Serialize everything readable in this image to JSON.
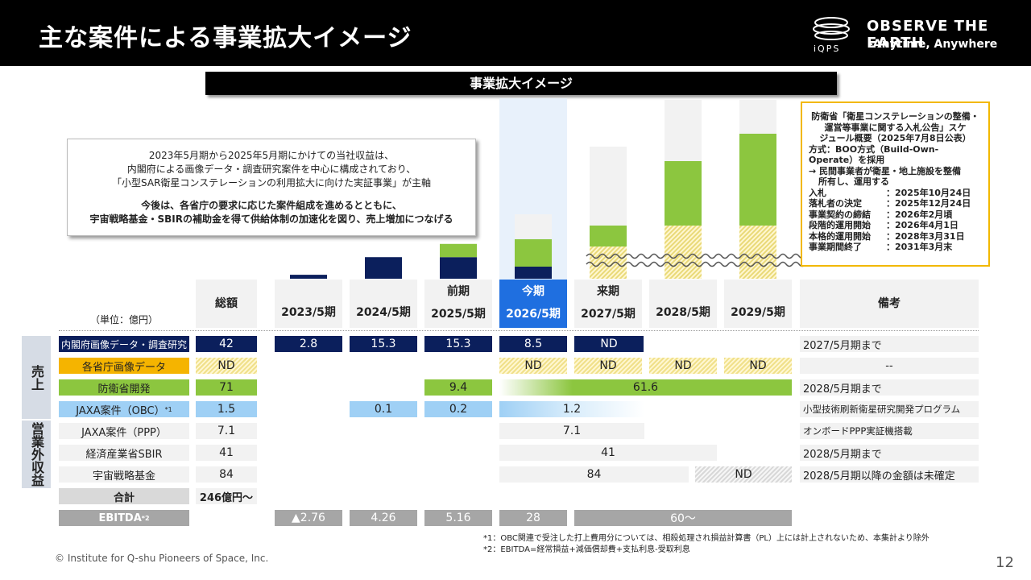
{
  "header": {
    "title": "主な案件による事業拡大イメージ",
    "logo_text": "iQPS",
    "tagline1": "OBSERVE THE EARTH",
    "tagline2": "-Anytime, Anywhere"
  },
  "banner": "事業拡大イメージ",
  "note": {
    "line1": "2023年5月期から2025年5月期にかけての当社収益は、",
    "line2": "内閣府による画像データ・調査研究案件を中心に構成されており、",
    "line3": "「小型SAR衛星コンステレーションの利用拡大に向けた実証事業」が主軸",
    "line4": "今後は、各省庁の要求に応じた案件組成を進めるとともに、",
    "line5": "宇宙戦略基金・SBIRの補助金を得て供給体制の加速化を図り、売上増加につなげる"
  },
  "schedule": {
    "head1": "防衛省「衛星コンステレーションの整備・",
    "head2": "運営等事業に関する入札公告」スケ",
    "head3": "ジュール概要（2025年7月8日公表）",
    "method1": "方式：BOO方式（Build-Own-",
    "method2": "Operate）を採用",
    "arrow1": "→ 民間事業者が衛星・地上施設を整備",
    "arrow2": "所有し、運用する",
    "rows": [
      {
        "k": "入札",
        "v": "：2025年10月24日"
      },
      {
        "k": "落札者の決定",
        "v": "：2025年12月24日"
      },
      {
        "k": "事業契約の締結",
        "v": "：2026年2月頃"
      },
      {
        "k": "段階的運用開始",
        "v": "：2026年4月1日"
      },
      {
        "k": "本格的運用開始",
        "v": "：2028年3月31日"
      },
      {
        "k": "事業期間終了",
        "v": "：2031年3月末"
      }
    ]
  },
  "table": {
    "unit": "（単位：億円）",
    "total_header": "総額",
    "remarks_header": "備考",
    "periods": [
      {
        "top": "",
        "label": "2023/5期"
      },
      {
        "top": "",
        "label": "2024/5期"
      },
      {
        "top": "前期",
        "label": "2025/5期"
      },
      {
        "top": "今期",
        "label": "2026/5期"
      },
      {
        "top": "来期",
        "label": "2027/5期"
      },
      {
        "top": "",
        "label": "2028/5期"
      },
      {
        "top": "",
        "label": "2029/5期"
      }
    ],
    "side_sales": "売上",
    "side_nonop": "営業外収益",
    "rows": [
      {
        "label": "内閣府画像データ・調査研究",
        "total": "42",
        "v1": "2.8",
        "v2": "15.3",
        "v3": "15.3",
        "v4": "8.5",
        "v5": "ND",
        "remark": "2027/5月期まで"
      },
      {
        "label": "各省庁画像データ",
        "total": "ND",
        "v4": "ND",
        "v5": "ND",
        "v6": "ND",
        "v7": "ND",
        "remark": "--"
      },
      {
        "label": "防衛省開発",
        "total": "71",
        "v3": "9.4",
        "span": "61.6",
        "remark": "2028/5月期まで"
      },
      {
        "label": "JAXA案件（OBC）",
        "label_sup": "*1",
        "total": "1.5",
        "v2": "0.1",
        "v3": "0.2",
        "span": "1.2",
        "remark": "小型技術刷新衛星研究開発プログラム"
      },
      {
        "label": "JAXA案件（PPP）",
        "total": "7.1",
        "span": "7.1",
        "remark": "オンボードPPP実証機搭載"
      },
      {
        "label": "経済産業省SBIR",
        "total": "41",
        "span": "41",
        "remark": "2028/5月期まで"
      },
      {
        "label": "宇宙戦略基金",
        "total": "84",
        "span": "84",
        "v7": "ND",
        "remark": "2028/5月期以降の金額は未確定"
      }
    ],
    "sum_label": "合計",
    "sum_value": "246億円～",
    "ebitda_label": "EBITDA",
    "ebitda_sup": "*2",
    "ebitda": [
      "▲2.76",
      "4.26",
      "5.16",
      "28",
      "60～"
    ]
  },
  "chart_data": {
    "type": "bar",
    "categories": [
      "2023/5期",
      "2024/5期",
      "2025/5期",
      "2026/5期",
      "2027/5期",
      "2028/5期",
      "2029/5期"
    ],
    "series": [
      {
        "name": "内閣府画像データ・調査研究",
        "values": [
          2.8,
          15.3,
          15.3,
          8.5,
          null,
          null,
          null
        ]
      },
      {
        "name": "防衛省開発",
        "values": [
          null,
          null,
          9.4,
          null,
          null,
          null,
          null
        ]
      }
    ]
  },
  "footnotes": {
    "f1": "*1：OBC関連で受注した打上費用分については、相殺処理され損益計算書（PL）上には計上されないため、本集計より除外",
    "f2": "*2：EBITDA=経常損益+減価償却費+支払利息-受取利息"
  },
  "copyright": "© Institute for Q-shu Pioneers of Space, Inc.",
  "page_number": "12",
  "colors": {
    "navy": "#0b1f5c",
    "green": "#8cc63f",
    "light_blue": "#9fd0f5",
    "orange": "#f5b400",
    "highlight": "#1f6fe0"
  }
}
